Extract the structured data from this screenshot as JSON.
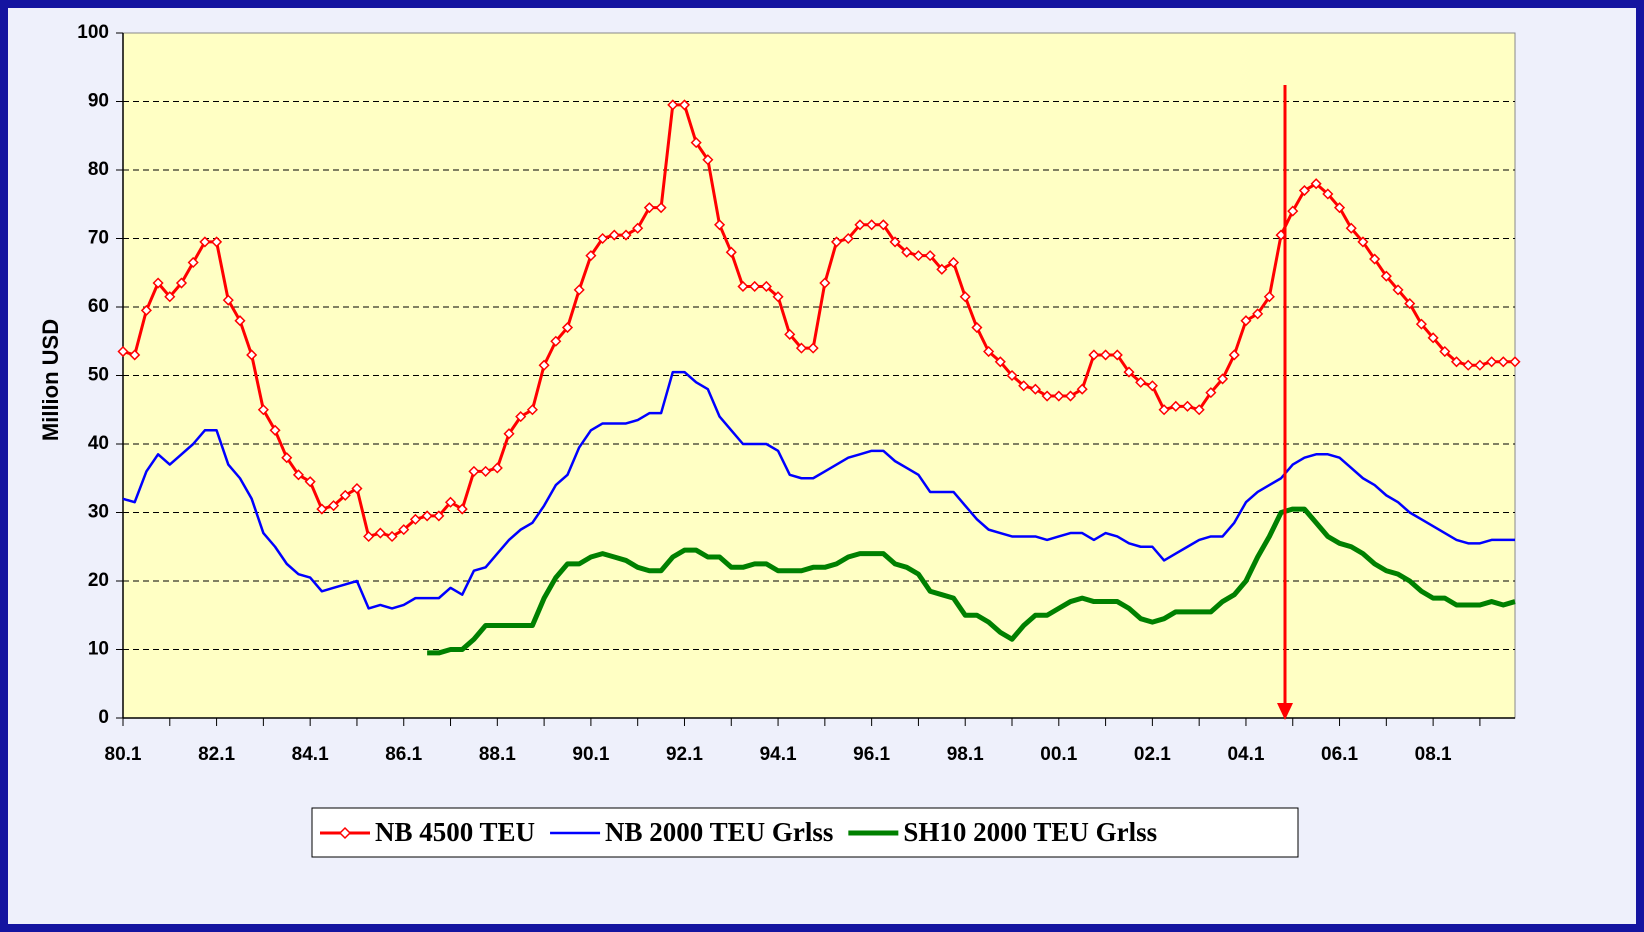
{
  "chart_data": {
    "type": "line",
    "y_label": "Million USD",
    "categories": [
      "80.1",
      null,
      null,
      null,
      null,
      null,
      null,
      null,
      "82.1",
      null,
      null,
      null,
      null,
      null,
      null,
      null,
      "84.1",
      null,
      null,
      null,
      null,
      null,
      null,
      null,
      "86.1",
      null,
      null,
      null,
      null,
      null,
      null,
      null,
      "88.1",
      null,
      null,
      null,
      null,
      null,
      null,
      null,
      "90.1",
      null,
      null,
      null,
      null,
      null,
      null,
      null,
      "92.1",
      null,
      null,
      null,
      null,
      null,
      null,
      null,
      "94.1",
      null,
      null,
      null,
      null,
      null,
      null,
      null,
      "96.1",
      null,
      null,
      null,
      null,
      null,
      null,
      null,
      "98.1",
      null,
      null,
      null,
      null,
      null,
      null,
      null,
      "00.1",
      null,
      null,
      null,
      null,
      null,
      null,
      null,
      "02.1",
      null,
      null,
      null,
      null,
      null,
      null,
      null,
      "04.1",
      null,
      null,
      null,
      null,
      null,
      null,
      null,
      "06.1",
      null,
      null,
      null,
      null,
      null,
      null,
      null,
      "08.1",
      null,
      null,
      null,
      null,
      null,
      null,
      null
    ],
    "series": [
      {
        "name": "NB 4500 TEU",
        "color": "#ff0000",
        "marker": "diamond",
        "line_width": 3,
        "values": [
          53.5,
          53,
          59.5,
          63.5,
          61.5,
          63.5,
          66.5,
          69.5,
          69.5,
          61,
          58,
          53,
          45,
          42,
          38,
          35.5,
          34.5,
          30.5,
          31,
          32.5,
          33.5,
          26.5,
          27,
          26.5,
          27.5,
          29,
          29.5,
          29.5,
          31.5,
          30.5,
          36,
          36,
          36.5,
          41.5,
          44,
          45,
          51.5,
          55,
          57,
          62.5,
          67.5,
          70,
          70.5,
          70.5,
          71.5,
          74.5,
          74.5,
          89.5,
          89.5,
          84,
          81.5,
          72,
          68,
          63,
          63,
          63,
          61.5,
          56,
          54,
          54,
          63.5,
          69.5,
          70,
          72,
          72,
          72,
          69.5,
          68,
          67.5,
          67.5,
          65.5,
          66.5,
          61.5,
          57,
          53.5,
          52,
          50,
          48.5,
          48,
          47,
          47,
          47,
          48,
          53,
          53,
          53,
          50.5,
          49,
          48.5,
          45,
          45.5,
          45.5,
          45,
          47.5,
          49.5,
          53,
          58,
          59,
          61.5,
          70.5,
          74,
          77,
          78,
          76.5,
          74.5,
          71.5,
          69.5,
          67,
          64.5,
          62.5,
          60.5,
          57.5,
          55.5,
          53.5,
          52,
          51.5,
          51.5,
          52,
          52,
          52
        ]
      },
      {
        "name": "NB 2000 TEU Grlss",
        "color": "#0000ff",
        "line_width": 2.5,
        "values": [
          32,
          31.5,
          36,
          38.5,
          37,
          38.5,
          40,
          42,
          42,
          37,
          35,
          32,
          27,
          25,
          22.5,
          21,
          20.5,
          18.5,
          19,
          19.5,
          20,
          16,
          16.5,
          16,
          16.5,
          17.5,
          17.5,
          17.5,
          19,
          18,
          21.5,
          22,
          24,
          26,
          27.5,
          28.5,
          31,
          34,
          35.5,
          39.5,
          42,
          43,
          43,
          43,
          43.5,
          44.5,
          44.5,
          50.5,
          50.5,
          49,
          48,
          44,
          42,
          40,
          40,
          40,
          39,
          35.5,
          35,
          35,
          36,
          37,
          38,
          38.5,
          39,
          39,
          37.5,
          36.5,
          35.5,
          33,
          33,
          33,
          31,
          29,
          27.5,
          27,
          26.5,
          26.5,
          26.5,
          26,
          26.5,
          27,
          27,
          26,
          27,
          26.5,
          25.5,
          25,
          25,
          23,
          24,
          25,
          26,
          26.5,
          26.5,
          28.5,
          31.5,
          33,
          34,
          35,
          37,
          38,
          38.5,
          38.5,
          38,
          36.5,
          35,
          34,
          32.5,
          31.5,
          30,
          29,
          28,
          27,
          26,
          25.5,
          25.5,
          26,
          26,
          26
        ]
      },
      {
        "name": "SH10 2000 TEU Grlss",
        "color": "#008000",
        "line_width": 5,
        "values": [
          null,
          null,
          null,
          null,
          null,
          null,
          null,
          null,
          null,
          null,
          null,
          null,
          null,
          null,
          null,
          null,
          null,
          null,
          null,
          null,
          null,
          null,
          null,
          null,
          null,
          null,
          9.5,
          9.5,
          10,
          10,
          11.5,
          13.5,
          13.5,
          13.5,
          13.5,
          13.5,
          17.5,
          20.5,
          22.5,
          22.5,
          23.5,
          24,
          23.5,
          23,
          22,
          21.5,
          21.5,
          23.5,
          24.5,
          24.5,
          23.5,
          23.5,
          22,
          22,
          22.5,
          22.5,
          21.5,
          21.5,
          21.5,
          22,
          22,
          22.5,
          23.5,
          24,
          24,
          24,
          22.5,
          22,
          21,
          18.5,
          18,
          17.5,
          15,
          15,
          14,
          12.5,
          11.5,
          13.5,
          15,
          15,
          16,
          17,
          17.5,
          17,
          17,
          17,
          16,
          14.5,
          14,
          14.5,
          15.5,
          15.5,
          15.5,
          15.5,
          17,
          18,
          20,
          23.5,
          26.5,
          30,
          30.5,
          30.5,
          28.5,
          26.5,
          25.5,
          25,
          24,
          22.5,
          21.5,
          21,
          20,
          18.5,
          17.5,
          17.5,
          16.5,
          16.5,
          16.5,
          17,
          16.5,
          17
        ]
      }
    ],
    "ylim": [
      0,
      100
    ],
    "yticks": [
      0,
      10,
      20,
      30,
      40,
      50,
      60,
      70,
      80,
      90,
      100
    ],
    "grid": true,
    "legend": "bottom"
  }
}
